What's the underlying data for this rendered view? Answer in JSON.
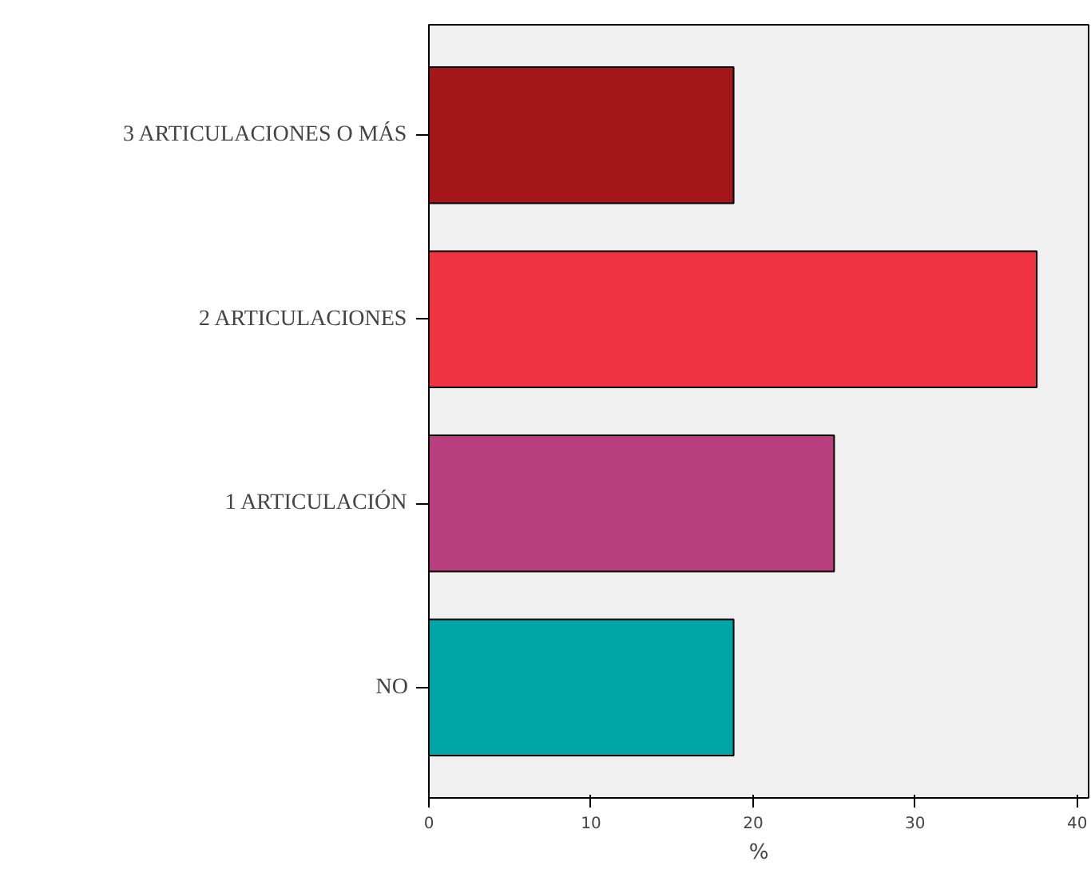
{
  "chart_data": {
    "type": "bar",
    "orientation": "horizontal",
    "xlabel": "%",
    "categories": [
      "3 ARTICULACIONES O MÁS",
      "2 ARTICULACIONES",
      "1 ARTICULACIÓN",
      "NO"
    ],
    "values": [
      18.8,
      37.5,
      25,
      18.8
    ],
    "colors": [
      "#a3161a",
      "#ef3340",
      "#b83e7e",
      "#00a6a6"
    ],
    "xlim": [
      0,
      40.7
    ],
    "xticks": [
      0,
      10,
      20,
      30,
      40
    ],
    "grid": false
  }
}
